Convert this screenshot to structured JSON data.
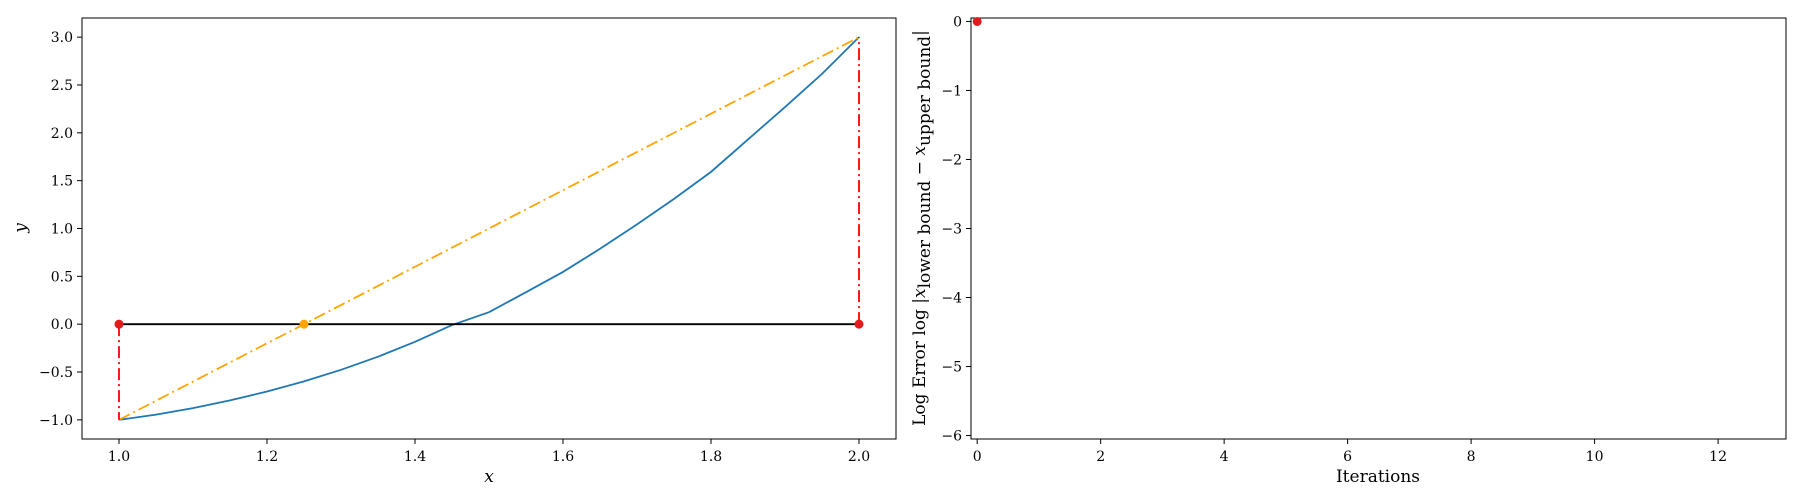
{
  "chart_data": [
    {
      "type": "line",
      "xlabel": "x",
      "ylabel": "y",
      "xlim": [
        0.95,
        2.05
      ],
      "ylim": [
        -1.2,
        3.2
      ],
      "xticks": [
        1.0,
        1.2,
        1.4,
        1.6,
        1.8,
        2.0
      ],
      "xtick_labels": [
        "1.0",
        "1.2",
        "1.4",
        "1.6",
        "1.8",
        "2.0"
      ],
      "yticks": [
        -1.0,
        -0.5,
        0.0,
        0.5,
        1.0,
        1.5,
        2.0,
        2.5,
        3.0
      ],
      "ytick_labels": [
        "−1.0",
        "−0.5",
        "0.0",
        "0.5",
        "1.0",
        "1.5",
        "2.0",
        "2.5",
        "3.0"
      ],
      "grid": false,
      "series": [
        {
          "style": "solid",
          "color": "#1f77b4",
          "x": [
            1.0,
            1.05,
            1.1,
            1.15,
            1.2,
            1.25,
            1.3,
            1.35,
            1.4,
            1.45,
            1.5,
            1.55,
            1.6,
            1.65,
            1.7,
            1.75,
            1.8,
            1.85,
            1.9,
            1.95,
            2.0
          ],
          "y": [
            -1.0,
            -0.945,
            -0.877,
            -0.796,
            -0.704,
            -0.598,
            -0.477,
            -0.34,
            -0.184,
            -0.009,
            0.125,
            0.334,
            0.546,
            0.788,
            1.043,
            1.31,
            1.592,
            1.931,
            2.269,
            2.616,
            3.0
          ]
        },
        {
          "style": "solid",
          "color": "#000000",
          "x": [
            1.0,
            2.0
          ],
          "y": [
            0.0,
            0.0
          ]
        },
        {
          "style": "dashdot",
          "color": "#ffa500",
          "x": [
            1.0,
            2.0
          ],
          "y": [
            -1.0,
            3.0
          ]
        },
        {
          "style": "dashdot",
          "color": "#ff0000",
          "x": [
            1.0,
            1.0
          ],
          "y": [
            0.0,
            -1.0
          ]
        },
        {
          "style": "dashdot",
          "color": "#ff0000",
          "x": [
            2.0,
            2.0
          ],
          "y": [
            0.0,
            3.0
          ]
        }
      ],
      "points": [
        {
          "x": 1.0,
          "y": 0.0,
          "color": "#e31a1c"
        },
        {
          "x": 2.0,
          "y": 0.0,
          "color": "#e31a1c"
        },
        {
          "x": 1.25,
          "y": 0.0,
          "color": "#ffa500"
        }
      ]
    },
    {
      "type": "scatter",
      "xlabel": "Iterations",
      "ylabel": "Log Error log |x lower bound − x upper bound|",
      "xlim": [
        -0.1,
        13.1
      ],
      "ylim": [
        -6.05,
        0.05
      ],
      "xticks": [
        0,
        2,
        4,
        6,
        8,
        10,
        12
      ],
      "xtick_labels": [
        "0",
        "2",
        "4",
        "6",
        "8",
        "10",
        "12"
      ],
      "yticks": [
        0,
        -1,
        -2,
        -3,
        -4,
        -5,
        -6
      ],
      "ytick_labels": [
        "0",
        "−1",
        "−2",
        "−3",
        "−4",
        "−5",
        "−6"
      ],
      "grid": false,
      "points": [
        {
          "x": 0,
          "y": 0,
          "color": "#e31a1c"
        }
      ]
    }
  ],
  "ylabel_right": {
    "prefix": "Log Error log |",
    "x1": "x",
    "sub1": "lower bound",
    "minus": " − ",
    "x2": "x",
    "sub2": "upper bound",
    "suffix": "|"
  }
}
